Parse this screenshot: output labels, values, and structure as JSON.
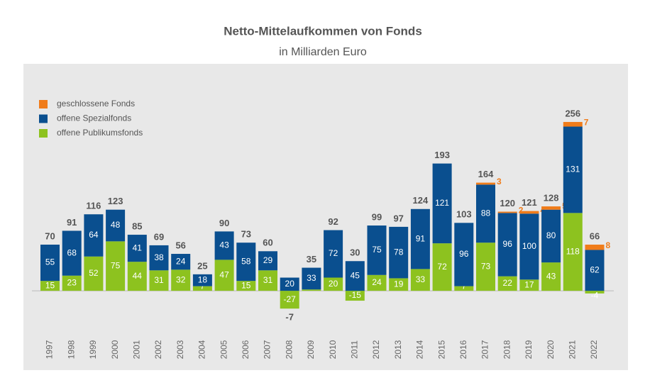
{
  "chart_data": {
    "type": "stacked-bar",
    "title": "Netto-Mittelaufkommen von Fonds",
    "subtitle": "in Milliarden Euro",
    "categories": [
      "1997",
      "1998",
      "1999",
      "2000",
      "2001",
      "2002",
      "2003",
      "2004",
      "2005",
      "2006",
      "2007",
      "2008",
      "2009",
      "2010",
      "2011",
      "2012",
      "2013",
      "2014",
      "2015",
      "2016",
      "2017",
      "2018",
      "2019",
      "2020",
      "2021",
      "2022"
    ],
    "series": [
      {
        "name": "offene Publikumsfonds",
        "color": "#8dc21f",
        "values": [
          15,
          23,
          52,
          75,
          44,
          31,
          32,
          7,
          47,
          15,
          31,
          -27,
          2,
          20,
          -15,
          24,
          19,
          33,
          72,
          7,
          73,
          22,
          17,
          43,
          118,
          -4
        ]
      },
      {
        "name": "offene Spezialfonds",
        "color": "#0a4f8f",
        "values": [
          55,
          68,
          64,
          48,
          41,
          38,
          24,
          18,
          43,
          58,
          29,
          20,
          33,
          72,
          45,
          75,
          78,
          91,
          121,
          96,
          88,
          96,
          100,
          80,
          131,
          62
        ]
      },
      {
        "name": "geschlossene Fonds",
        "color": "#f07c1a",
        "values": [
          null,
          null,
          null,
          null,
          null,
          null,
          null,
          null,
          null,
          null,
          null,
          null,
          null,
          null,
          null,
          null,
          null,
          null,
          null,
          null,
          3,
          2,
          4,
          5,
          7,
          8
        ]
      }
    ],
    "totals": [
      70,
      91,
      116,
      123,
      85,
      69,
      56,
      25,
      90,
      73,
      60,
      -7,
      35,
      92,
      30,
      99,
      97,
      124,
      193,
      103,
      164,
      120,
      121,
      128,
      256,
      66
    ],
    "ylim": [
      -30,
      270
    ],
    "legend": "top-left"
  }
}
